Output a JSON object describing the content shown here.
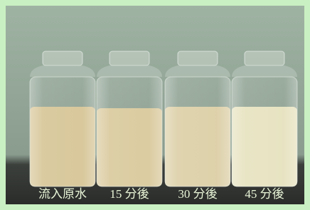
{
  "labels": [
    "流入原水",
    "15 分後",
    "30 分後",
    "45 分後"
  ]
}
